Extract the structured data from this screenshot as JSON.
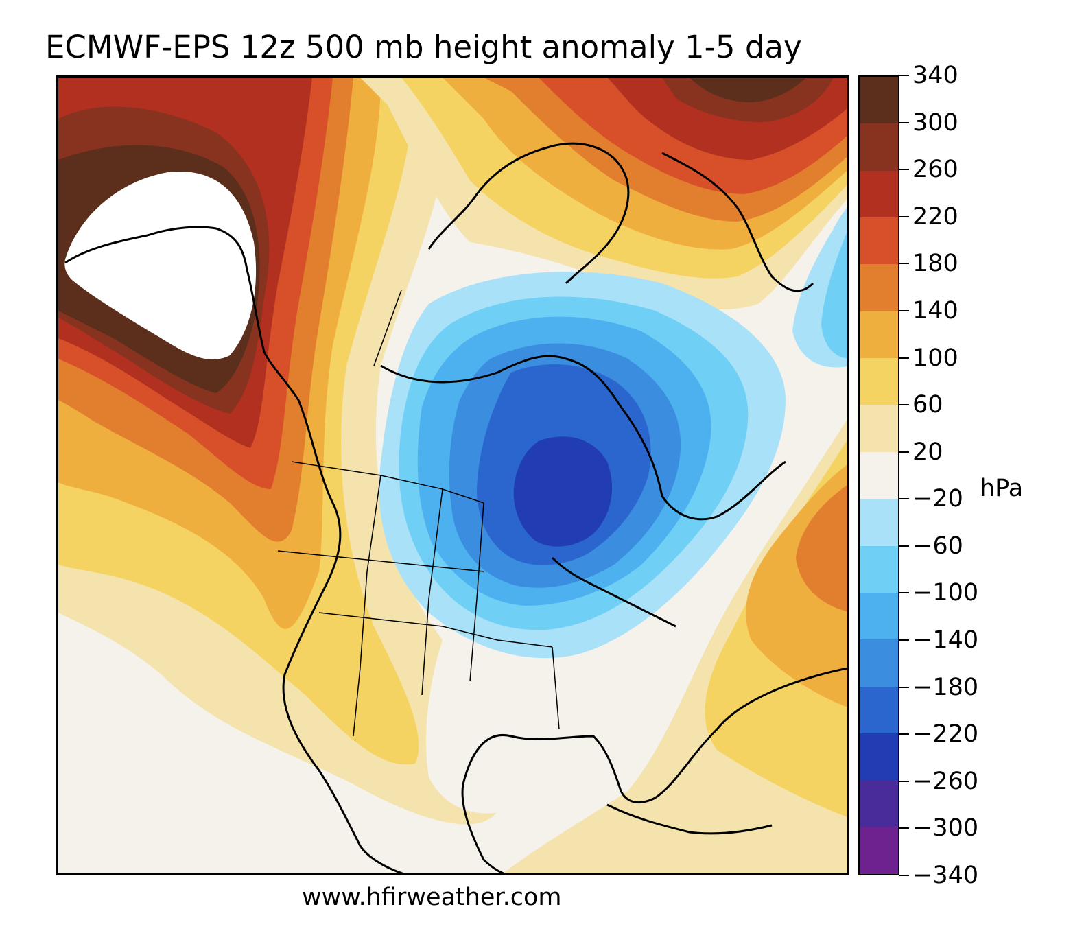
{
  "title": "ECMWF-EPS 12z 500 mb height anomaly 1-5 day",
  "footer": "www.hfirweather.com",
  "colorbar": {
    "unit": "hPa",
    "ticks": [
      "340",
      "300",
      "260",
      "220",
      "180",
      "140",
      "100",
      "60",
      "20",
      "−20",
      "−60",
      "−100",
      "−140",
      "−180",
      "−220",
      "−260",
      "−300",
      "−340"
    ],
    "bands": [
      {
        "range": "300 to 340",
        "color": "#5c2e1c"
      },
      {
        "range": "260 to 300",
        "color": "#883320"
      },
      {
        "range": "220 to 260",
        "color": "#b2301f"
      },
      {
        "range": "180 to 220",
        "color": "#d8502a"
      },
      {
        "range": "140 to 180",
        "color": "#e27f2e"
      },
      {
        "range": "100 to 140",
        "color": "#efaf3f"
      },
      {
        "range": "60 to 100",
        "color": "#f5d362"
      },
      {
        "range": "20 to 60",
        "color": "#f4e3ad"
      },
      {
        "range": "-20 to 20",
        "color": "#f5f2ec"
      },
      {
        "range": "-60 to -20",
        "color": "#a9e2f8"
      },
      {
        "range": "-100 to -60",
        "color": "#6fcff5"
      },
      {
        "range": "-140 to -100",
        "color": "#4cb1ee"
      },
      {
        "range": "-180 to -140",
        "color": "#3a8ddf"
      },
      {
        "range": "-220 to -180",
        "color": "#2b66cf"
      },
      {
        "range": "-260 to -220",
        "color": "#223cb3"
      },
      {
        "range": "-300 to -260",
        "color": "#4a2b9a"
      },
      {
        "range": "-340 to -300",
        "color": "#6e2290"
      }
    ]
  },
  "map": {
    "region": "North America",
    "field": "500 mb height anomaly",
    "features": [
      {
        "name": "positive anomaly over Alaska and western Canada",
        "peak": ">340"
      },
      {
        "name": "positive anomaly over Greenland and the Canadian Arctic",
        "peak": "300 to 340"
      },
      {
        "name": "positive anomaly over the western Atlantic",
        "peak": "140 to 180"
      },
      {
        "name": "negative anomaly centered over Ontario and the Upper Great Lakes",
        "peak": "-260 to -220"
      }
    ]
  }
}
